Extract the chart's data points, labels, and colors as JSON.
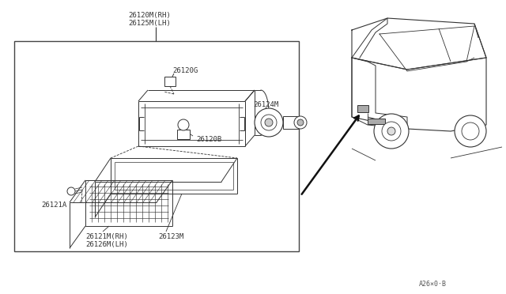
{
  "bg_color": "#ffffff",
  "box_color": "#333333",
  "line_color": "#333333",
  "text_color": "#333333",
  "font_size": 6.5,
  "labels": {
    "26120M_RH": "26120M(RH)",
    "26125M_LH": "26125M(LH)",
    "26120G": "26120G",
    "26124M": "26124M",
    "26120B": "26120B",
    "26121A": "26121A",
    "26121M_RH": "26121M(RH)",
    "26126M_LH": "26126M(LH)",
    "26123M": "26123M",
    "part_code": "A26×0·B"
  }
}
